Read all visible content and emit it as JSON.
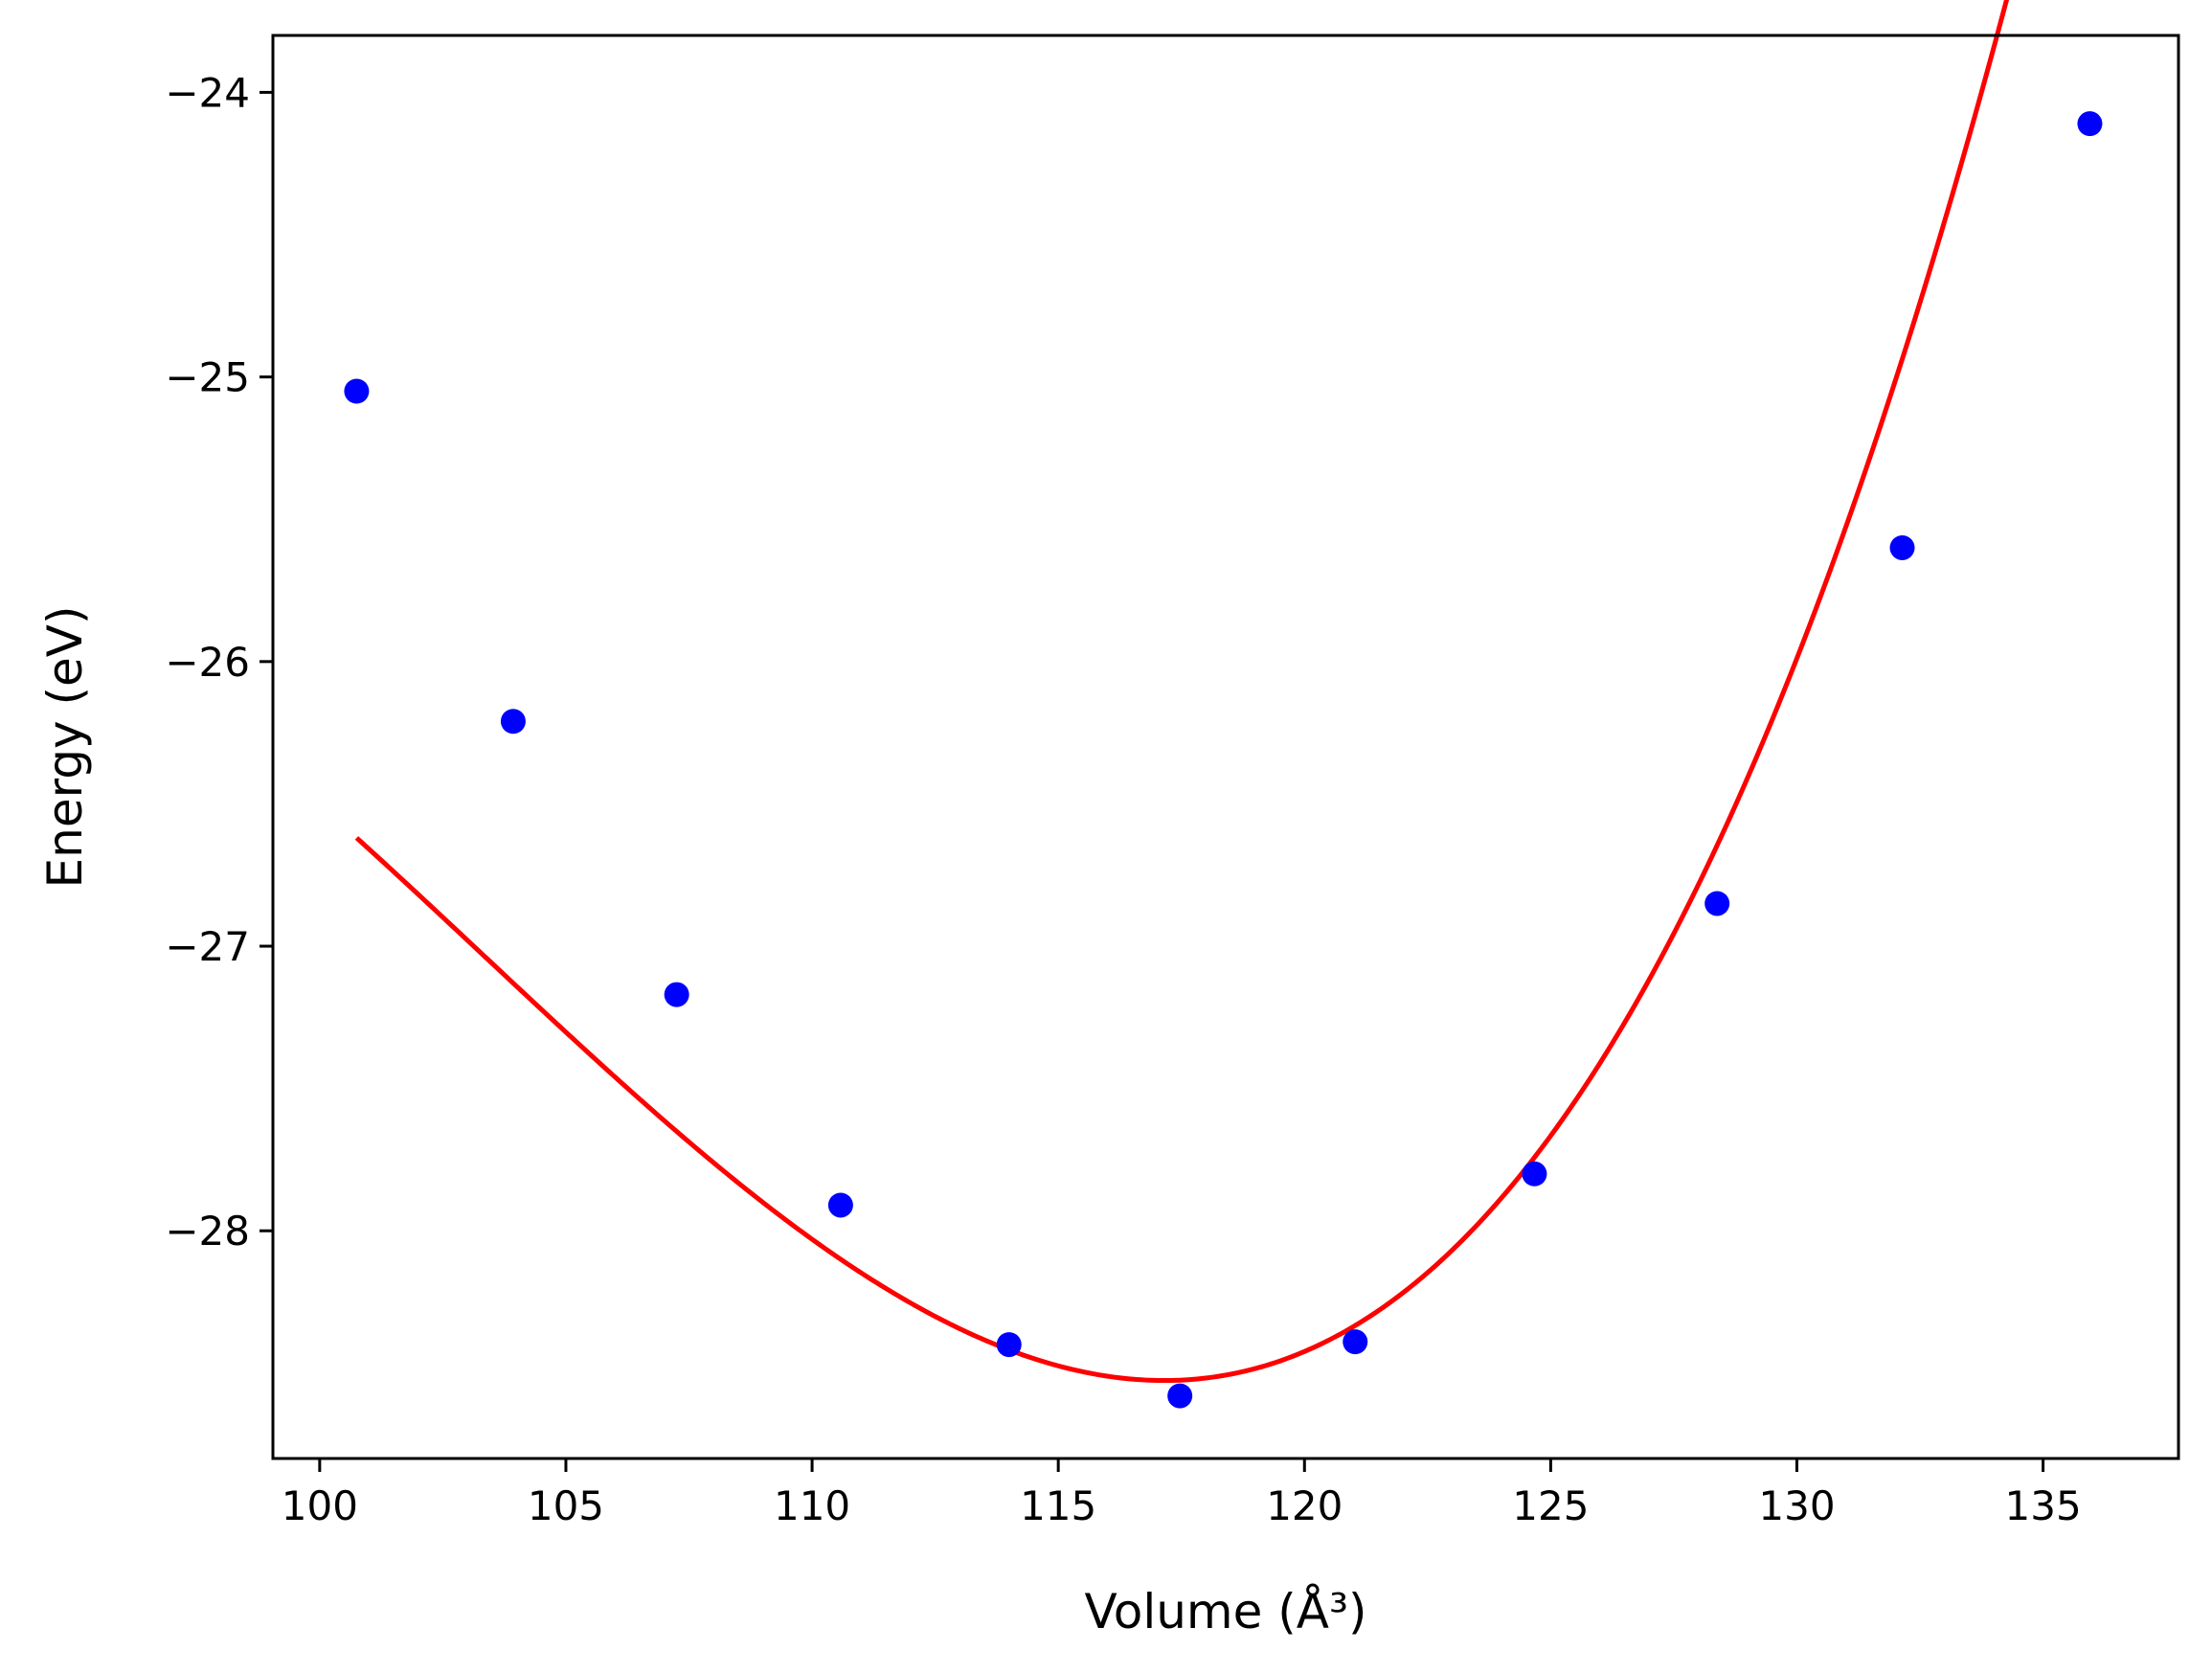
{
  "chart_data": {
    "type": "scatter",
    "title": "",
    "xlabel": "Volume (Å³)",
    "ylabel": "Energy (eV)",
    "xlim": [
      99.05,
      137.75
    ],
    "ylim": [
      -28.8,
      -23.8
    ],
    "xticks": [
      100,
      105,
      110,
      115,
      120,
      125,
      130,
      135
    ],
    "xtick_labels": [
      "100",
      "105",
      "110",
      "115",
      "120",
      "125",
      "130",
      "135"
    ],
    "yticks": [
      -24,
      -25,
      -26,
      -27,
      -28
    ],
    "ytick_labels": [
      "−24",
      "−25",
      "−26",
      "−27",
      "−28"
    ],
    "grid": false,
    "legend": "none",
    "series": [
      {
        "kind": "scatter",
        "color": "#0000ff",
        "x": [
          100.75,
          103.93,
          107.25,
          110.58,
          114.0,
          117.47,
          121.03,
          124.67,
          128.38,
          132.14,
          135.95
        ],
        "y": [
          -25.05,
          -26.21,
          -27.17,
          -27.91,
          -28.4,
          -28.58,
          -28.39,
          -27.8,
          -26.85,
          -25.6,
          -24.11
        ]
      },
      {
        "kind": "line",
        "color": "#ff0000",
        "fit": "cubic",
        "xmin": 100.75,
        "xmax": 135.95,
        "coefficients": [
          -28.526,
          0.0,
          0.01173,
          0.000283
        ],
        "x0": 117.15
      }
    ]
  }
}
